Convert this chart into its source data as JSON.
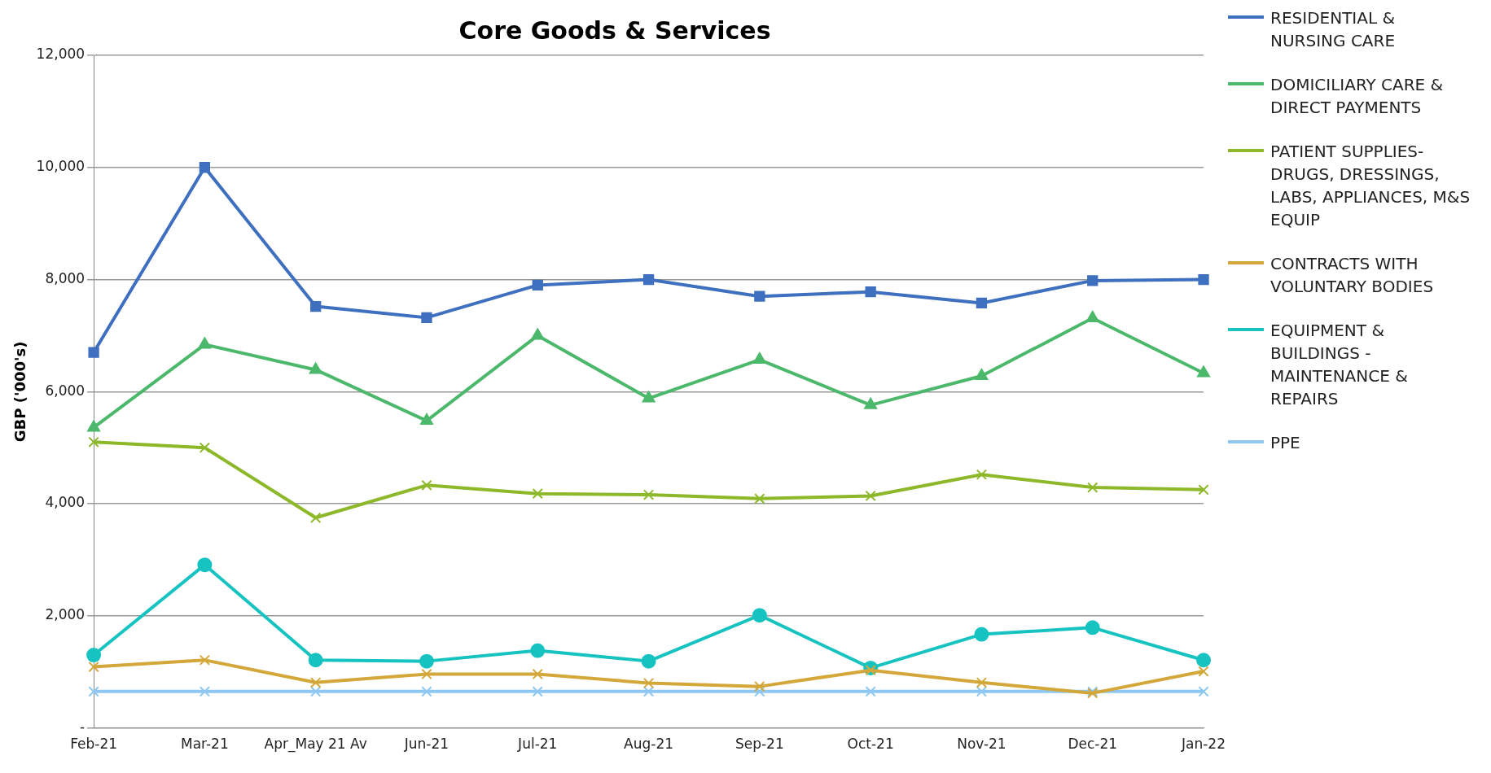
{
  "chart_data": {
    "type": "line",
    "title": "Core Goods & Services",
    "ylabel": "GBP ('000's)",
    "categories": [
      "Feb-21",
      "Mar-21",
      "Apr_May 21 Av",
      "Jun-21",
      "Jul-21",
      "Aug-21",
      "Sep-21",
      "Oct-21",
      "Nov-21",
      "Dec-21",
      "Jan-22"
    ],
    "series": [
      {
        "name": "RESIDENTIAL & NURSING CARE",
        "color": "#3f6fbf",
        "marker": "square",
        "values": [
          6700,
          10000,
          7520,
          7320,
          7900,
          8000,
          7700,
          7780,
          7580,
          7980,
          8000
        ]
      },
      {
        "name": "DOMICILIARY CARE & DIRECT PAYMENTS",
        "color": "#4cb86b",
        "marker": "triangle",
        "values": [
          5360,
          6840,
          6390,
          5480,
          7000,
          5880,
          6570,
          5760,
          6280,
          7310,
          6330
        ]
      },
      {
        "name": "PATIENT SUPPLIES- DRUGS, DRESSINGS, LABS, APPLIANCES, M&S EQUIP",
        "color": "#8db82a",
        "marker": "cross",
        "values": [
          5100,
          5000,
          3750,
          4330,
          4180,
          4160,
          4090,
          4140,
          4520,
          4290,
          4250
        ]
      },
      {
        "name": "CONTRACTS WITH VOLUNTARY BODIES",
        "color": "#d4a73a",
        "marker": "cross",
        "values": [
          1090,
          1210,
          810,
          960,
          960,
          800,
          740,
          1030,
          810,
          620,
          1010
        ]
      },
      {
        "name": "EQUIPMENT & BUILDINGS - MAINTENANCE & REPAIRS",
        "color": "#17c3c0",
        "marker": "circle",
        "values": [
          1300,
          2910,
          1210,
          1190,
          1380,
          1190,
          2010,
          1070,
          1670,
          1790,
          1210
        ]
      },
      {
        "name": "PPE",
        "color": "#8ec8f2",
        "marker": "cross",
        "values": [
          650,
          650,
          650,
          650,
          650,
          650,
          650,
          650,
          650,
          650,
          650
        ]
      }
    ],
    "ylim": [
      0,
      12000
    ],
    "yticks": [
      {
        "value": 0,
        "label": "-"
      },
      {
        "value": 2000,
        "label": "2,000"
      },
      {
        "value": 4000,
        "label": "4,000"
      },
      {
        "value": 6000,
        "label": "6,000"
      },
      {
        "value": 8000,
        "label": "8,000"
      },
      {
        "value": 10000,
        "label": "10,000"
      },
      {
        "value": 12000,
        "label": "12,000"
      }
    ],
    "grid": "y",
    "legend": "top right",
    "line_style": "solid"
  }
}
